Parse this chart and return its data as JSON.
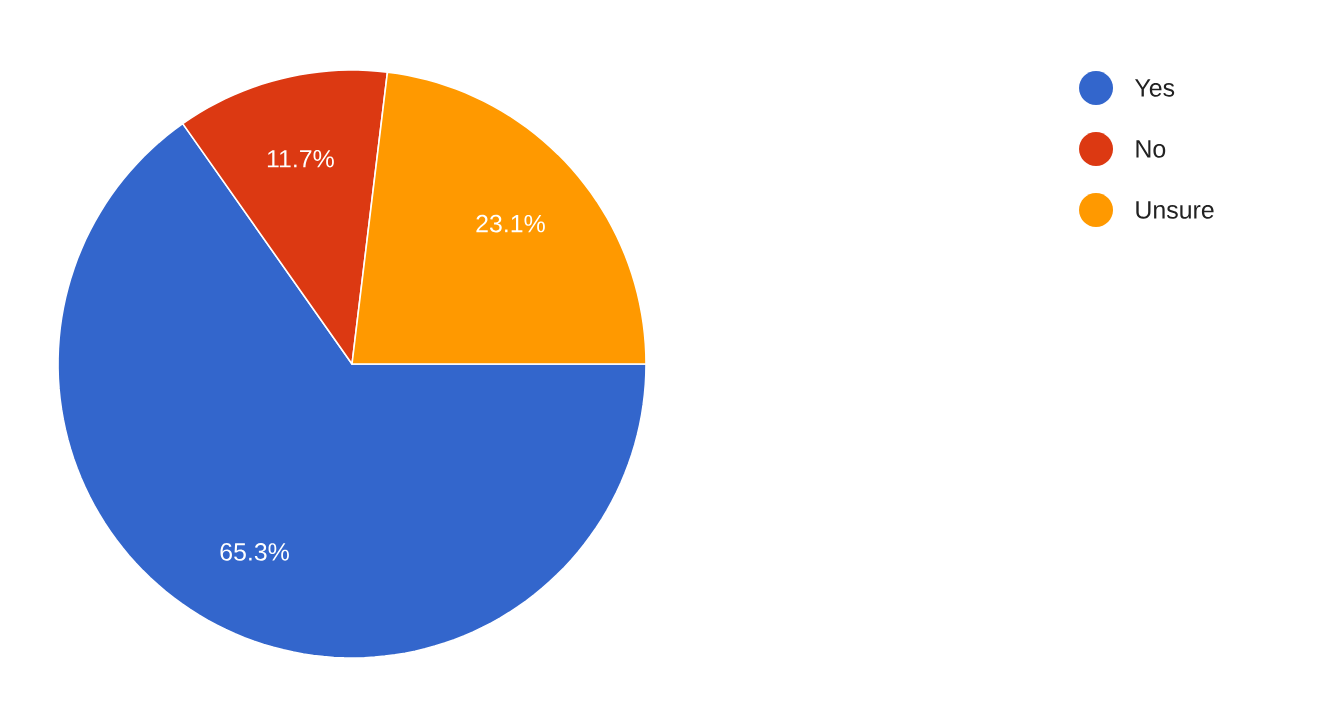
{
  "chart_data": {
    "type": "pie",
    "categories": [
      "Yes",
      "No",
      "Unsure"
    ],
    "values": [
      65.3,
      11.7,
      23.1
    ],
    "colors": [
      "#3366cc",
      "#dc3912",
      "#ff9900"
    ],
    "value_labels": [
      "65.3%",
      "11.7%",
      "23.1%"
    ],
    "legend": "top right"
  }
}
